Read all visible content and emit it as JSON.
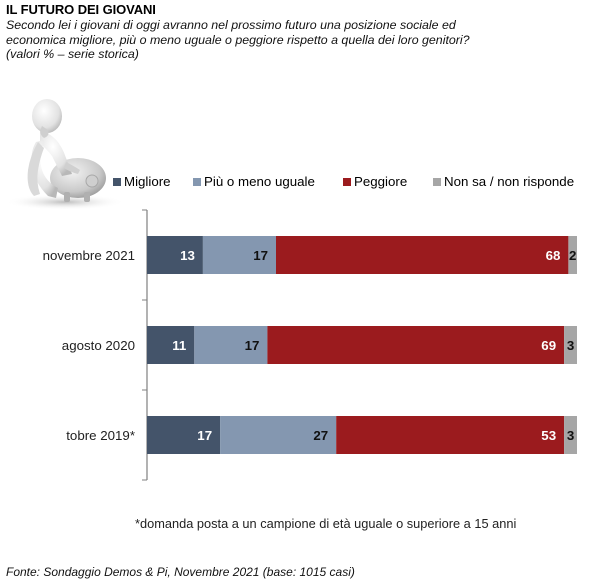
{
  "header": {
    "title": "IL FUTURO DEI GIOVANI",
    "subtitle_lines": [
      "Secondo lei i giovani di oggi avranno nel prossimo futuro una posizione sociale ed",
      "economica migliore, più o meno uguale o peggiore rispetto a quella dei loro genitori?",
      "(valori % – serie storica)"
    ]
  },
  "illustration": {
    "icon": "figure-on-piggy-bank-icon"
  },
  "chart_data": {
    "type": "bar",
    "orientation": "horizontal",
    "stacked": true,
    "title": "IL FUTURO DEI GIOVANI",
    "xlabel": "",
    "ylabel": "",
    "xlim": [
      0,
      100
    ],
    "grid": false,
    "legend_position": "top",
    "categories": [
      "novembre 2021",
      "agosto 2020",
      "tobre 2019*"
    ],
    "series": [
      {
        "name": "Migliore",
        "color": "#44546a",
        "label_color": "#ffffff",
        "values": [
          13,
          11,
          17
        ]
      },
      {
        "name": "Più o meno uguale",
        "color": "#8497b0",
        "label_color": "#111111",
        "values": [
          17,
          17,
          27
        ]
      },
      {
        "name": "Peggiore",
        "color": "#9b1b1e",
        "label_color": "#ffffff",
        "values": [
          68,
          69,
          53
        ]
      },
      {
        "name": "Non sa / non risponde",
        "color": "#a6a6a6",
        "label_color": "#111111",
        "values": [
          2,
          3,
          3
        ]
      }
    ]
  },
  "footnote": "*domanda posta a un campione di età uguale o superiore a 15 anni",
  "source": "Fonte: Sondaggio Demos & Pi, Novembre 2021 (base: 1015 casi)"
}
